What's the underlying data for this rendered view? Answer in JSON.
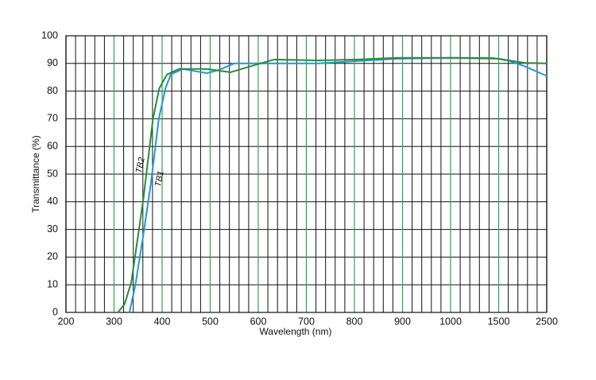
{
  "chart_data": {
    "type": "line",
    "x_label": "Wavelength (nm)",
    "y_label": "Transmittance (%)",
    "xticks": [
      200,
      300,
      400,
      500,
      600,
      700,
      800,
      900,
      1000,
      1500,
      2500
    ],
    "xlim": [
      200,
      2500
    ],
    "x_minor_divisions": 5,
    "ylim": [
      0,
      100
    ],
    "yticks": [
      0,
      10,
      20,
      30,
      40,
      50,
      60,
      70,
      80,
      90,
      100
    ],
    "grid": true,
    "grid_color": "#111",
    "major_grid_color": "#2aa84a",
    "series": [
      {
        "name": "TB1",
        "color": "#1e9ad6",
        "x": [
          332,
          344,
          360,
          377,
          393,
          407,
          418,
          443,
          493,
          517,
          550,
          608,
          724,
          889,
          1025,
          1440,
          1700,
          2040,
          2500
        ],
        "values": [
          0,
          9.5,
          27,
          47,
          70,
          81,
          86,
          88,
          86.5,
          87.6,
          90,
          90,
          90,
          91.7,
          92,
          92,
          91,
          89,
          85.5
        ]
      },
      {
        "name": "TB2",
        "color": "#2a8a3a",
        "x": [
          308,
          322,
          336,
          361,
          381,
          394,
          410,
          435,
          493,
          542,
          592,
          633,
          724,
          807,
          889,
          1025,
          1500,
          2040,
          2500
        ],
        "values": [
          0,
          3,
          11,
          41,
          70,
          81,
          86,
          88,
          88,
          86.8,
          89.4,
          91.4,
          91.1,
          91.4,
          92,
          92,
          91.7,
          90.2,
          90
        ]
      }
    ]
  }
}
